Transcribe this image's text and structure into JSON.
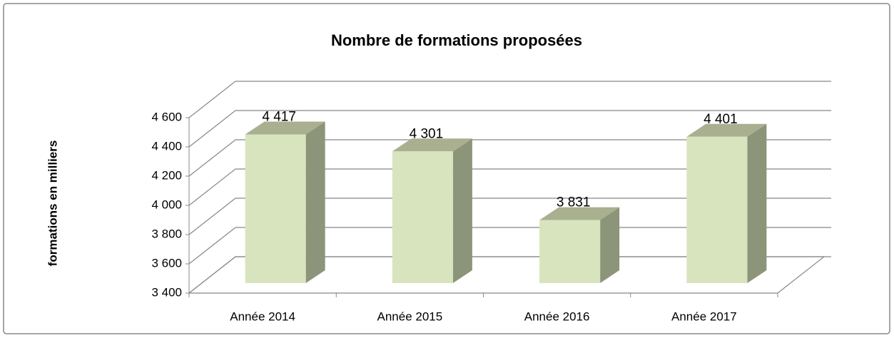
{
  "chart_data": {
    "type": "bar3d",
    "title": "Nombre de formations proposées",
    "y_label": "formations en milliers",
    "categories": [
      "Année 2014",
      "Année 2015",
      "Année 2016",
      "Année 2017"
    ],
    "values": [
      4417,
      4301,
      3831,
      4401
    ],
    "value_labels": [
      "4 417",
      "4 301",
      "3 831",
      "4 401"
    ],
    "color": "#d7e4bd",
    "ylim": [
      3400,
      4600
    ],
    "yticks": [
      {
        "value": 3400,
        "label": "3 400"
      },
      {
        "value": 3600,
        "label": "3 600"
      },
      {
        "value": 3800,
        "label": "3 800"
      },
      {
        "value": 4000,
        "label": "4 000"
      },
      {
        "value": 4200,
        "label": "4 200"
      },
      {
        "value": 4400,
        "label": "4 400"
      },
      {
        "value": 4600,
        "label": "4 600"
      }
    ],
    "grid": true
  }
}
